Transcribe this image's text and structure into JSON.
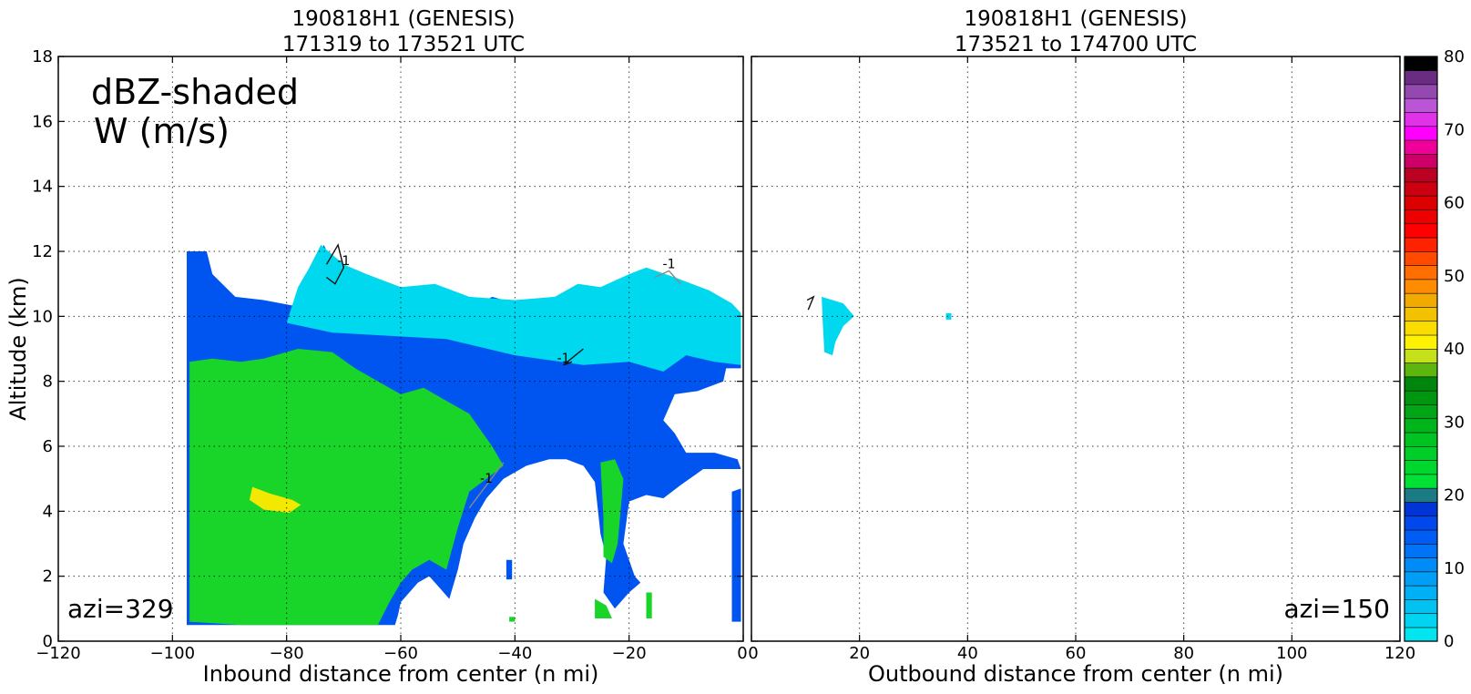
{
  "chart_data": [
    {
      "type": "heatmap",
      "title": [
        "190818H1 (GENESIS)",
        "171319 to 173521 UTC"
      ],
      "xlabel": "Inbound distance from center (n mi)",
      "ylabel": "Altitude (km)",
      "xlim": [
        -120,
        0
      ],
      "ylim": [
        0,
        18
      ],
      "xticks": [
        -120,
        -100,
        -80,
        -60,
        -40,
        -20,
        0
      ],
      "yticks": [
        0,
        2,
        4,
        6,
        8,
        10,
        12,
        14,
        16,
        18
      ],
      "grid": true,
      "annotations": [
        "dBZ-shaded",
        "W (m/s)",
        "azi=329"
      ],
      "contour_label": "-1",
      "echo_regions": [
        {
          "level_dbz": 10,
          "polygon": [
            [
              -97.5,
              0.5
            ],
            [
              -97.5,
              12
            ],
            [
              -94,
              12
            ],
            [
              -93,
              11.3
            ],
            [
              -89,
              10.6
            ],
            [
              -84,
              10.5
            ],
            [
              -78,
              10.3
            ],
            [
              -76,
              11.1
            ],
            [
              -73.5,
              12.2
            ],
            [
              -70,
              11
            ],
            [
              -66,
              11.1
            ],
            [
              -62,
              10.8
            ],
            [
              -58,
              10.5
            ],
            [
              -54,
              10.7
            ],
            [
              -48,
              10.2
            ],
            [
              -44,
              10.6
            ],
            [
              -38,
              10.3
            ],
            [
              -33,
              10.5
            ],
            [
              -29,
              10.6
            ],
            [
              -26,
              10.6
            ],
            [
              -22,
              10.8
            ],
            [
              -18,
              11.2
            ],
            [
              -14,
              11.1
            ],
            [
              -9,
              10.6
            ],
            [
              -4,
              10.2
            ],
            [
              -0.4,
              10
            ],
            [
              -0.4,
              8.4
            ],
            [
              -3,
              8.4
            ],
            [
              -3.5,
              8
            ],
            [
              -8,
              7.7
            ],
            [
              -12,
              7.6
            ],
            [
              -14,
              6.8
            ],
            [
              -12,
              6.4
            ],
            [
              -10,
              5.8
            ],
            [
              -5,
              5.8
            ],
            [
              -1,
              5.6
            ],
            [
              -0.4,
              5.3
            ],
            [
              -7,
              5.3
            ],
            [
              -11,
              4.8
            ],
            [
              -14,
              4.4
            ],
            [
              -17,
              4.5
            ],
            [
              -20,
              4.3
            ],
            [
              -21,
              3
            ],
            [
              -19,
              2
            ],
            [
              -18,
              1.8
            ],
            [
              -20,
              1.5
            ],
            [
              -22.5,
              1
            ],
            [
              -24.5,
              1.5
            ],
            [
              -24,
              2.6
            ],
            [
              -25,
              3.3
            ],
            [
              -26,
              4.9
            ],
            [
              -28,
              5.4
            ],
            [
              -31,
              5.6
            ],
            [
              -34,
              5.6
            ],
            [
              -38,
              5.4
            ],
            [
              -42,
              5
            ],
            [
              -45,
              4.4
            ],
            [
              -47,
              3.8
            ],
            [
              -49,
              3
            ],
            [
              -50,
              2.2
            ],
            [
              -51.5,
              1.3
            ],
            [
              -53,
              1.6
            ],
            [
              -55,
              2
            ],
            [
              -57,
              1.8
            ],
            [
              -60,
              1.2
            ],
            [
              -60.5,
              0.8
            ],
            [
              -61,
              0.5
            ]
          ]
        },
        {
          "level_dbz": 10,
          "polygon": [
            [
              -41.5,
              1.9
            ],
            [
              -40.5,
              1.9
            ],
            [
              -40.5,
              2.5
            ],
            [
              -41.5,
              2.5
            ]
          ]
        },
        {
          "level_dbz": 10,
          "polygon": [
            [
              -2,
              0.6
            ],
            [
              -0.4,
              0.6
            ],
            [
              -0.4,
              4.7
            ],
            [
              -2,
              4.6
            ]
          ]
        },
        {
          "level_dbz": 5,
          "polygon": [
            [
              -78,
              10.9
            ],
            [
              -76,
              11.5
            ],
            [
              -74,
              12.2
            ],
            [
              -70,
              11.6
            ],
            [
              -66,
              11.3
            ],
            [
              -60,
              10.9
            ],
            [
              -54,
              11
            ],
            [
              -48,
              10.6
            ],
            [
              -40,
              10.5
            ],
            [
              -33,
              10.6
            ],
            [
              -29,
              11
            ],
            [
              -25,
              10.9
            ],
            [
              -20,
              11.3
            ],
            [
              -17,
              11.5
            ],
            [
              -12,
              11.2
            ],
            [
              -6,
              10.8
            ],
            [
              -2,
              10.4
            ],
            [
              -0.4,
              10.1
            ],
            [
              -0.4,
              8.5
            ],
            [
              -5,
              8.6
            ],
            [
              -10,
              8.8
            ],
            [
              -14,
              8.3
            ],
            [
              -20,
              8.6
            ],
            [
              -28,
              8.5
            ],
            [
              -40,
              8.8
            ],
            [
              -52,
              9.3
            ],
            [
              -62,
              9.4
            ],
            [
              -72,
              9.5
            ],
            [
              -80,
              9.8
            ]
          ]
        },
        {
          "level_dbz": 5,
          "polygon": [
            [
              -31,
              9.5
            ],
            [
              -28,
              10.6
            ],
            [
              -26,
              10.7
            ],
            [
              -24,
              10
            ],
            [
              -23,
              9.5
            ],
            [
              -24.5,
              9
            ],
            [
              -26,
              8.8
            ],
            [
              -27.5,
              8.5
            ],
            [
              -29.5,
              8.7
            ]
          ]
        },
        {
          "level_dbz": 20,
          "polygon": [
            [
              -97,
              0.6
            ],
            [
              -97,
              8.6
            ],
            [
              -93,
              8.7
            ],
            [
              -88,
              8.6
            ],
            [
              -84,
              8.7
            ],
            [
              -78,
              9
            ],
            [
              -72,
              8.9
            ],
            [
              -68,
              8.4
            ],
            [
              -64,
              8
            ],
            [
              -60,
              7.6
            ],
            [
              -56,
              7.8
            ],
            [
              -52,
              7.4
            ],
            [
              -48,
              7
            ],
            [
              -46,
              6.5
            ],
            [
              -44,
              6
            ],
            [
              -42,
              5.4
            ],
            [
              -45,
              5
            ],
            [
              -48,
              4.6
            ],
            [
              -50,
              3.5
            ],
            [
              -52,
              2.2
            ],
            [
              -55,
              2.5
            ],
            [
              -58,
              2.2
            ],
            [
              -60,
              1.8
            ],
            [
              -62,
              1.2
            ],
            [
              -64,
              0.5
            ],
            [
              -72,
              0.5
            ],
            [
              -80,
              0.5
            ],
            [
              -88,
              0.5
            ]
          ]
        },
        {
          "level_dbz": 20,
          "polygon": [
            [
              -25,
              5.5
            ],
            [
              -22.5,
              5.6
            ],
            [
              -21,
              5
            ],
            [
              -21.5,
              4
            ],
            [
              -22,
              3
            ],
            [
              -23,
              2.4
            ],
            [
              -24.5,
              2.6
            ],
            [
              -24.5,
              3.8
            ]
          ]
        },
        {
          "level_dbz": 20,
          "polygon": [
            [
              -26,
              1.3
            ],
            [
              -24,
              1.1
            ],
            [
              -23,
              0.7
            ],
            [
              -26,
              0.7
            ]
          ]
        },
        {
          "level_dbz": 20,
          "polygon": [
            [
              -17,
              1.5
            ],
            [
              -16,
              1.5
            ],
            [
              -16,
              0.7
            ],
            [
              -17,
              0.7
            ]
          ]
        },
        {
          "level_dbz": 20,
          "polygon": [
            [
              -41,
              0.6
            ],
            [
              -40,
              0.6
            ],
            [
              -40,
              0.75
            ],
            [
              -41,
              0.75
            ]
          ]
        },
        {
          "level_dbz": 35,
          "polygon": [
            [
              -86,
              4.75
            ],
            [
              -83,
              4.55
            ],
            [
              -79,
              4.35
            ],
            [
              -77.5,
              4.2
            ],
            [
              -79.5,
              3.95
            ],
            [
              -84,
              4.05
            ],
            [
              -86.5,
              4.35
            ]
          ]
        }
      ],
      "contours_w_neg1": [
        [
          [
            -73,
            11.6
          ],
          [
            -71,
            12.2
          ],
          [
            -70,
            11.5
          ],
          [
            -71.5,
            11
          ],
          [
            -73,
            11.2
          ]
        ],
        [
          [
            -15.5,
            11.2
          ],
          [
            -13,
            11.4
          ],
          [
            -11,
            11
          ]
        ],
        [
          [
            -30,
            8.6
          ],
          [
            -31.5,
            8.5
          ],
          [
            -28,
            9
          ]
        ],
        [
          [
            -42,
            5.5
          ],
          [
            -45,
            4.8
          ],
          [
            -48,
            4.1
          ]
        ]
      ]
    },
    {
      "type": "heatmap",
      "title": [
        "190818H1 (GENESIS)",
        "173521 to 174700 UTC"
      ],
      "xlabel": "Outbound distance from center (n mi)",
      "ylabel": "",
      "xlim": [
        0,
        120
      ],
      "ylim": [
        0,
        18
      ],
      "xticks": [
        0,
        20,
        40,
        60,
        80,
        100,
        120
      ],
      "yticks": [
        0,
        2,
        4,
        6,
        8,
        10,
        12,
        14,
        16,
        18
      ],
      "grid": true,
      "annotations": [
        "azi=150"
      ],
      "echo_regions": [
        {
          "level_dbz": 5,
          "polygon": [
            [
              13,
              10.6
            ],
            [
              17,
              10.4
            ],
            [
              19,
              10
            ],
            [
              17,
              9.7
            ],
            [
              15.5,
              9.2
            ],
            [
              15,
              8.8
            ],
            [
              13.5,
              8.9
            ],
            [
              13.2,
              9.8
            ]
          ]
        },
        {
          "level_dbz": 5,
          "polygon": [
            [
              36,
              10.1
            ],
            [
              37,
              10.1
            ],
            [
              37,
              9.9
            ],
            [
              36,
              9.9
            ]
          ]
        }
      ],
      "contours_w_neg1": [
        [
          [
            10.5,
            10.2
          ],
          [
            11.5,
            10.6
          ],
          [
            10.3,
            10.5
          ]
        ]
      ]
    }
  ],
  "colorbar": {
    "label_min": 0,
    "label_max": 80,
    "tick_labels": [
      "0",
      "10",
      "20",
      "30",
      "40",
      "50",
      "60",
      "70",
      "80"
    ],
    "colors": [
      "#00e5ee",
      "#00d4f0",
      "#00c3f2",
      "#00b0f4",
      "#009ff5",
      "#008cf6",
      "#0073f6",
      "#005cf4",
      "#0048ec",
      "#0034d4",
      "#1b7b84",
      "#00e035",
      "#00d72e",
      "#00ce28",
      "#00c222",
      "#00b41c",
      "#00a616",
      "#009610",
      "#00860c",
      "#5db60e",
      "#c5e11c",
      "#fff200",
      "#fbdc00",
      "#f2c200",
      "#f0aa00",
      "#ff8c00",
      "#ff6e00",
      "#ff4a00",
      "#ff2200",
      "#ff0000",
      "#ec0000",
      "#dc0000",
      "#cc0010",
      "#bb0022",
      "#cc0066",
      "#ee0099",
      "#ff00ff",
      "#e033e8",
      "#bb55d8",
      "#9548b0",
      "#6a2c80",
      "#000000"
    ]
  },
  "fill_colors": {
    "5": "#00d8ef",
    "10": "#0055f0",
    "20": "#19d52a",
    "35": "#f3e800"
  }
}
